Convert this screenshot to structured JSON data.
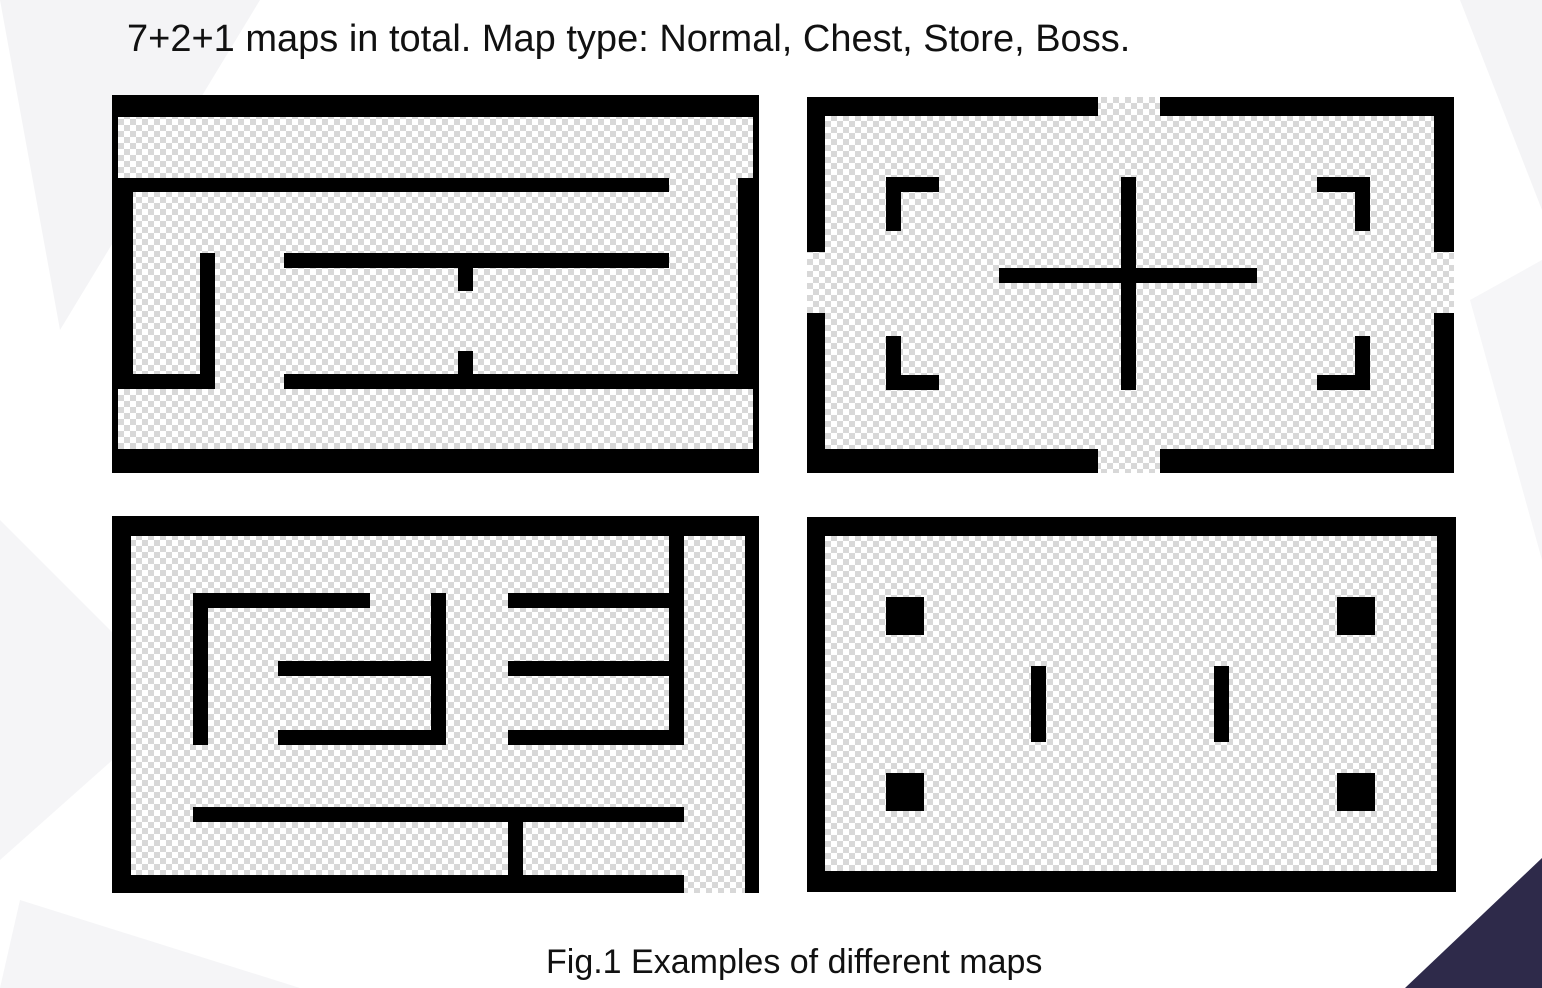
{
  "header": {
    "headline": "7+2+1 maps in total.  Map type: Normal, Chest, Store, Boss."
  },
  "figure": {
    "caption": "Fig.1 Examples of different maps"
  },
  "colors": {
    "wall": "#000000",
    "floor_light": "#ffffff",
    "floor_dark": "#d8d8d8",
    "corner_accent": "#2e2a4a"
  }
}
